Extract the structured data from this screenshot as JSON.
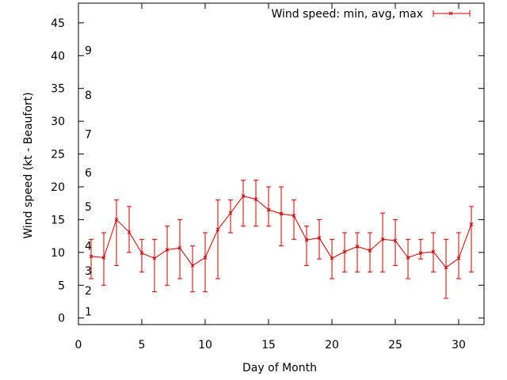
{
  "chart_data": {
    "type": "line",
    "title": "",
    "xlabel": "Day of Month",
    "ylabel": "Wind speed (kt - Beaufort)",
    "xlim": [
      0,
      32
    ],
    "ylim": [
      -1,
      48
    ],
    "xticks": [
      0,
      5,
      10,
      15,
      20,
      25,
      30
    ],
    "yticks": [
      0,
      5,
      10,
      15,
      20,
      25,
      30,
      35,
      40,
      45
    ],
    "grid": false,
    "legend_position": "top-right",
    "beaufort_labels": [
      {
        "label": "1",
        "value": 1.0
      },
      {
        "label": "2",
        "value": 4.2
      },
      {
        "label": "3",
        "value": 7.2
      },
      {
        "label": "4",
        "value": 11.0
      },
      {
        "label": "5",
        "value": 17.0
      },
      {
        "label": "6",
        "value": 22.2
      },
      {
        "label": "7",
        "value": 28.0
      },
      {
        "label": "8",
        "value": 34.0
      },
      {
        "label": "9",
        "value": 40.8
      }
    ],
    "series": [
      {
        "name": "Wind speed: min, avg, max",
        "color": "#cc0000",
        "x": [
          1,
          2,
          3,
          4,
          5,
          6,
          7,
          8,
          9,
          10,
          11,
          12,
          13,
          14,
          15,
          16,
          17,
          18,
          19,
          20,
          21,
          22,
          23,
          24,
          25,
          26,
          27,
          28,
          29,
          30,
          31
        ],
        "avg": [
          9.4,
          9.2,
          15.0,
          13.1,
          9.9,
          9.1,
          10.4,
          10.7,
          8.0,
          9.2,
          13.5,
          16.0,
          18.6,
          18.1,
          16.5,
          15.9,
          15.6,
          11.9,
          12.2,
          9.1,
          10.1,
          10.9,
          10.3,
          12.0,
          11.8,
          9.2,
          9.9,
          10.1,
          7.7,
          9.1,
          14.3
        ],
        "min": [
          6,
          5,
          8,
          10,
          7,
          4,
          5,
          6,
          4,
          4,
          6,
          13,
          14,
          14,
          14,
          11,
          12,
          8,
          9,
          6,
          7,
          7,
          7,
          7,
          8,
          6,
          9,
          7,
          3,
          6,
          7
        ],
        "max": [
          12,
          13,
          18,
          17,
          12,
          12,
          14,
          15,
          11,
          13,
          18,
          18,
          21,
          21,
          20,
          20,
          18,
          14,
          15,
          12,
          13,
          13,
          13,
          16,
          15,
          12,
          12,
          13,
          12,
          13,
          17
        ]
      }
    ]
  }
}
